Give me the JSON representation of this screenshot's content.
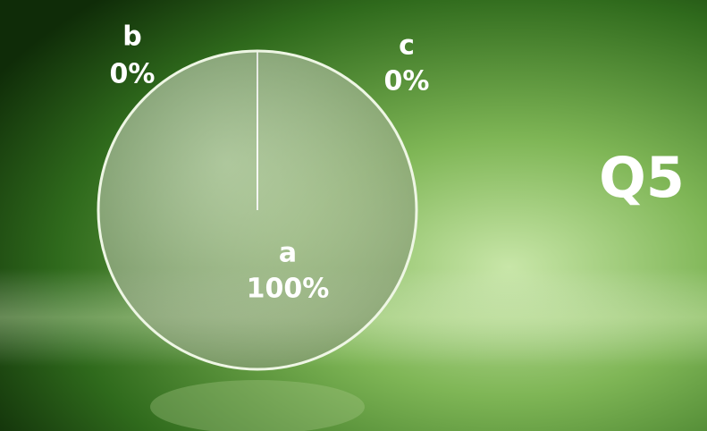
{
  "chart_data": {
    "type": "pie",
    "title": "Q5",
    "categories": [
      "a",
      "b",
      "c"
    ],
    "values": [
      100,
      0,
      0
    ],
    "value_labels": [
      "100%",
      "0%",
      "0%"
    ],
    "colors": [
      "#c4d3b2",
      "#ffffff",
      "#ffffff"
    ]
  }
}
